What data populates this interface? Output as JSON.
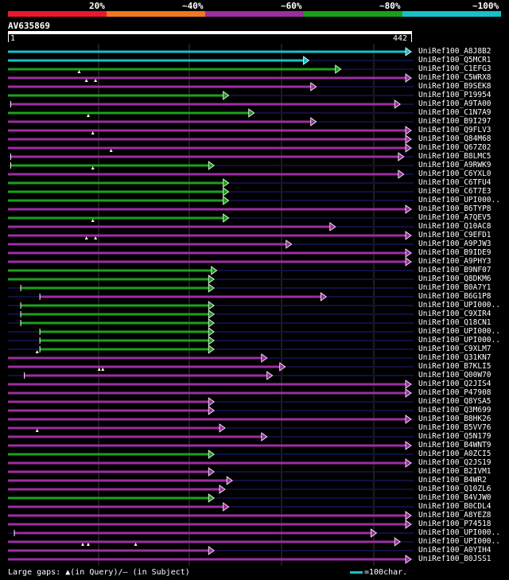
{
  "legend": {
    "labels": [
      "20%",
      "~40%",
      "~60%",
      "~80%",
      "~100%"
    ],
    "colors": [
      "#e8192c",
      "#f07820",
      "#9c2ea2",
      "#1ca01c",
      "#19c0c8"
    ]
  },
  "query": {
    "name": "AV635869",
    "start": "1",
    "end": "442"
  },
  "hits": [
    {
      "name": "UniRef100_A8J8B2",
      "color": "#19c0c8",
      "start": 0,
      "end": 442,
      "gaps": []
    },
    {
      "name": "UniRef100_Q5MCR1",
      "color": "#19c0c8",
      "start": 0,
      "end": 330,
      "gaps": []
    },
    {
      "name": "UniRef100_C1EFG3",
      "color": "#1ca01c",
      "start": 0,
      "end": 365,
      "gaps": []
    },
    {
      "name": "UniRef100_C5WRX8",
      "color": "#9c2ea2",
      "start": 0,
      "end": 442,
      "gaps": [
        78
      ]
    },
    {
      "name": "UniRef100_B9SEK8",
      "color": "#9c2ea2",
      "start": 0,
      "end": 338,
      "gaps": [
        86,
        96
      ]
    },
    {
      "name": "UniRef100_P19954",
      "color": "#1ca01c",
      "start": 0,
      "end": 242,
      "gaps": []
    },
    {
      "name": "UniRef100_A9TA00",
      "color": "#9c2ea2",
      "start": 3,
      "end": 430,
      "gaps": []
    },
    {
      "name": "UniRef100_C1N7A9",
      "color": "#1ca01c",
      "start": 0,
      "end": 270,
      "gaps": []
    },
    {
      "name": "UniRef100_B9I297",
      "color": "#9c2ea2",
      "start": 0,
      "end": 338,
      "gaps": [
        88
      ]
    },
    {
      "name": "UniRef100_Q9FLV3",
      "color": "#9c2ea2",
      "start": 0,
      "end": 442,
      "gaps": []
    },
    {
      "name": "UniRef100_Q84M68",
      "color": "#9c2ea2",
      "start": 0,
      "end": 442,
      "gaps": [
        93
      ]
    },
    {
      "name": "UniRef100_Q67Z02",
      "color": "#9c2ea2",
      "start": 0,
      "end": 442,
      "gaps": []
    },
    {
      "name": "UniRef100_B8LMC5",
      "color": "#9c2ea2",
      "start": 3,
      "end": 434,
      "gaps": [
        113
      ]
    },
    {
      "name": "UniRef100_A9RWK9",
      "color": "#1ca01c",
      "start": 3,
      "end": 226,
      "gaps": []
    },
    {
      "name": "UniRef100_C6YXL0",
      "color": "#9c2ea2",
      "start": 0,
      "end": 434,
      "gaps": [
        93
      ]
    },
    {
      "name": "UniRef100_C6TFU4",
      "color": "#1ca01c",
      "start": 0,
      "end": 242,
      "gaps": []
    },
    {
      "name": "UniRef100_C6T7E3",
      "color": "#1ca01c",
      "start": 0,
      "end": 242,
      "gaps": []
    },
    {
      "name": "UniRef100_UPI000..",
      "color": "#1ca01c",
      "start": 0,
      "end": 242,
      "gaps": []
    },
    {
      "name": "UniRef100_B6TYP8",
      "color": "#9c2ea2",
      "start": 0,
      "end": 442,
      "gaps": []
    },
    {
      "name": "UniRef100_A7QEV5",
      "color": "#1ca01c",
      "start": 0,
      "end": 242,
      "gaps": []
    },
    {
      "name": "UniRef100_Q10AC8",
      "color": "#9c2ea2",
      "start": 0,
      "end": 359,
      "gaps": [
        93
      ]
    },
    {
      "name": "UniRef100_C9EFD1",
      "color": "#9c2ea2",
      "start": 0,
      "end": 442,
      "gaps": []
    },
    {
      "name": "UniRef100_A9PJW3",
      "color": "#9c2ea2",
      "start": 0,
      "end": 311,
      "gaps": [
        86,
        96
      ]
    },
    {
      "name": "UniRef100_B9IDE9",
      "color": "#9c2ea2",
      "start": 0,
      "end": 442,
      "gaps": []
    },
    {
      "name": "UniRef100_A9PHY3",
      "color": "#9c2ea2",
      "start": 0,
      "end": 442,
      "gaps": []
    },
    {
      "name": "UniRef100_B9NF07",
      "color": "#1ca01c",
      "start": 0,
      "end": 229,
      "gaps": []
    },
    {
      "name": "UniRef100_Q8DKM6",
      "color": "#1ca01c",
      "start": 0,
      "end": 226,
      "gaps": []
    },
    {
      "name": "UniRef100_B0A7Y1",
      "color": "#1ca01c",
      "start": 14,
      "end": 226,
      "gaps": []
    },
    {
      "name": "UniRef100_B6G1P8",
      "color": "#9c2ea2",
      "start": 35,
      "end": 349,
      "gaps": []
    },
    {
      "name": "UniRef100_UPI000..",
      "color": "#1ca01c",
      "start": 14,
      "end": 226,
      "gaps": []
    },
    {
      "name": "UniRef100_C9XIR4",
      "color": "#1ca01c",
      "start": 14,
      "end": 226,
      "gaps": []
    },
    {
      "name": "UniRef100_Q18CN1",
      "color": "#1ca01c",
      "start": 14,
      "end": 226,
      "gaps": []
    },
    {
      "name": "UniRef100_UPI000..",
      "color": "#1ca01c",
      "start": 35,
      "end": 226,
      "gaps": []
    },
    {
      "name": "UniRef100_UPI000..",
      "color": "#1ca01c",
      "start": 35,
      "end": 226,
      "gaps": []
    },
    {
      "name": "UniRef100_C9XLM7",
      "color": "#1ca01c",
      "start": 35,
      "end": 226,
      "gaps": []
    },
    {
      "name": "UniRef100_Q31KN7",
      "color": "#9c2ea2",
      "start": 0,
      "end": 284,
      "gaps": [
        32
      ]
    },
    {
      "name": "UniRef100_B7KLI5",
      "color": "#9c2ea2",
      "start": 0,
      "end": 304,
      "gaps": []
    },
    {
      "name": "UniRef100_Q00W70",
      "color": "#9c2ea2",
      "start": 18,
      "end": 290,
      "gaps": [
        100,
        104
      ]
    },
    {
      "name": "UniRef100_Q2JIS4",
      "color": "#9c2ea2",
      "start": 0,
      "end": 442,
      "gaps": []
    },
    {
      "name": "UniRef100_P47908",
      "color": "#9c2ea2",
      "start": 0,
      "end": 442,
      "gaps": []
    },
    {
      "name": "UniRef100_Q8YSA5",
      "color": "#9c2ea2",
      "start": 0,
      "end": 226,
      "gaps": []
    },
    {
      "name": "UniRef100_Q3M699",
      "color": "#9c2ea2",
      "start": 0,
      "end": 226,
      "gaps": []
    },
    {
      "name": "UniRef100_B8HK26",
      "color": "#9c2ea2",
      "start": 0,
      "end": 442,
      "gaps": []
    },
    {
      "name": "UniRef100_B5VV76",
      "color": "#9c2ea2",
      "start": 0,
      "end": 238,
      "gaps": []
    },
    {
      "name": "UniRef100_Q5N179",
      "color": "#9c2ea2",
      "start": 0,
      "end": 284,
      "gaps": [
        32
      ]
    },
    {
      "name": "UniRef100_B4WNT9",
      "color": "#9c2ea2",
      "start": 0,
      "end": 442,
      "gaps": []
    },
    {
      "name": "UniRef100_A0ZCI5",
      "color": "#1ca01c",
      "start": 0,
      "end": 226,
      "gaps": []
    },
    {
      "name": "UniRef100_Q2JS19",
      "color": "#9c2ea2",
      "start": 0,
      "end": 442,
      "gaps": []
    },
    {
      "name": "UniRef100_B2IVM1",
      "color": "#9c2ea2",
      "start": 0,
      "end": 226,
      "gaps": []
    },
    {
      "name": "UniRef100_B4WR2",
      "color": "#9c2ea2",
      "start": 0,
      "end": 246,
      "gaps": []
    },
    {
      "name": "UniRef100_Q10ZL6",
      "color": "#9c2ea2",
      "start": 0,
      "end": 238,
      "gaps": []
    },
    {
      "name": "UniRef100_B4VJW0",
      "color": "#1ca01c",
      "start": 0,
      "end": 226,
      "gaps": []
    },
    {
      "name": "UniRef100_B0CDL4",
      "color": "#9c2ea2",
      "start": 0,
      "end": 242,
      "gaps": []
    },
    {
      "name": "UniRef100_A8YEZ8",
      "color": "#9c2ea2",
      "start": 0,
      "end": 442,
      "gaps": []
    },
    {
      "name": "UniRef100_P74518",
      "color": "#9c2ea2",
      "start": 0,
      "end": 442,
      "gaps": []
    },
    {
      "name": "UniRef100_UPI000..",
      "color": "#9c2ea2",
      "start": 7,
      "end": 404,
      "gaps": []
    },
    {
      "name": "UniRef100_UPI000..",
      "color": "#9c2ea2",
      "start": 0,
      "end": 430,
      "gaps": []
    },
    {
      "name": "UniRef100_A0YIH4",
      "color": "#9c2ea2",
      "start": 0,
      "end": 226,
      "gaps": [
        82,
        88,
        140
      ]
    },
    {
      "name": "UniRef100_B0JSS1",
      "color": "#9c2ea2",
      "start": 0,
      "end": 442,
      "gaps": []
    }
  ],
  "footer": {
    "gaps_text": "Large gaps: ▲(in Query)/– (in Subject)",
    "scale_text": "=100char."
  }
}
